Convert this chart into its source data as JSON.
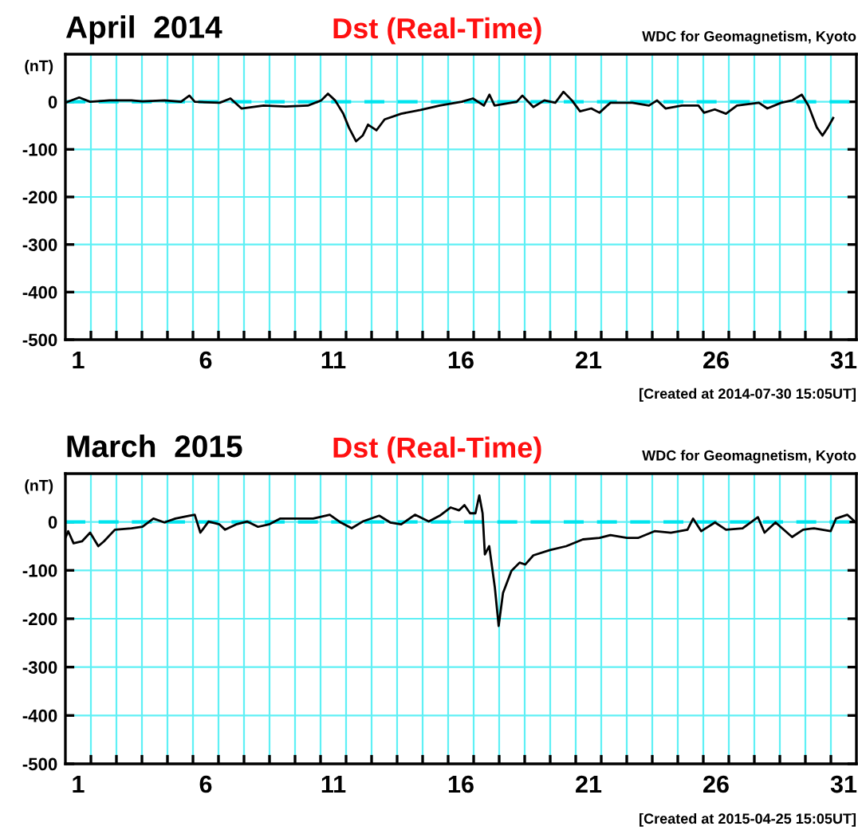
{
  "chart_data": [
    {
      "type": "line",
      "title": "April  2014",
      "subtitle": "Dst (Real-Time)",
      "ylabel": "(nT)",
      "annotations": [
        "WDC for Geomagnetism, Kyoto",
        "[Created at 2014-07-30 15:05UT]"
      ],
      "x": [
        1.0,
        1.54,
        1.97,
        2.73,
        3.59,
        4.02,
        4.89,
        5.53,
        5.86,
        6.07,
        7.05,
        7.47,
        7.9,
        8.77,
        9.63,
        10.5,
        11.03,
        11.29,
        11.57,
        11.89,
        12.11,
        12.39,
        12.65,
        12.86,
        13.19,
        13.51,
        14.16,
        14.92,
        15.67,
        16.53,
        16.97,
        17.4,
        17.62,
        17.82,
        18.69,
        18.91,
        19.34,
        19.77,
        20.2,
        20.52,
        20.85,
        21.17,
        21.61,
        21.93,
        22.36,
        23.22,
        23.87,
        24.19,
        24.52,
        25.16,
        25.81,
        26.03,
        26.45,
        26.89,
        27.32,
        28.18,
        28.51,
        29.05,
        29.48,
        29.86,
        30.12,
        30.45,
        30.67,
        30.88,
        31.09
      ],
      "series": [
        {
          "color": "#000000",
          "values": [
            -2,
            9,
            0,
            3,
            3,
            1,
            3,
            0,
            13,
            0,
            -2,
            7,
            -14,
            -8,
            -10,
            -8,
            3,
            17,
            3,
            -25,
            -54,
            -83,
            -71,
            -48,
            -60,
            -37,
            -25,
            -17,
            -8,
            0,
            7,
            -8,
            15,
            -8,
            0,
            13,
            -11,
            3,
            -2,
            21,
            3,
            -20,
            -14,
            -23,
            -2,
            -2,
            -8,
            3,
            -14,
            -8,
            -8,
            -23,
            -16,
            -25,
            -8,
            -2,
            -14,
            -2,
            3,
            15,
            -8,
            -54,
            -71,
            -54,
            -34
          ]
        }
      ],
      "xlim": [
        1,
        32
      ],
      "xticks": [
        {
          "value": 1.5,
          "label": "1"
        },
        {
          "value": 6.5,
          "label": "6"
        },
        {
          "value": 11.5,
          "label": "11"
        },
        {
          "value": 16.5,
          "label": "16"
        },
        {
          "value": 21.5,
          "label": "21"
        },
        {
          "value": 26.5,
          "label": "26"
        },
        {
          "value": 31.5,
          "label": "31"
        },
        {
          "value": 2,
          "label": null
        },
        {
          "value": 3,
          "label": null
        },
        {
          "value": 4,
          "label": null
        },
        {
          "value": 5,
          "label": null
        },
        {
          "value": 6,
          "label": null
        },
        {
          "value": 7,
          "label": null
        },
        {
          "value": 8,
          "label": null
        },
        {
          "value": 9,
          "label": null
        },
        {
          "value": 10,
          "label": null
        },
        {
          "value": 11,
          "label": null
        },
        {
          "value": 12,
          "label": null
        },
        {
          "value": 13,
          "label": null
        },
        {
          "value": 14,
          "label": null
        },
        {
          "value": 15,
          "label": null
        },
        {
          "value": 16,
          "label": null
        },
        {
          "value": 17,
          "label": null
        },
        {
          "value": 18,
          "label": null
        },
        {
          "value": 19,
          "label": null
        },
        {
          "value": 20,
          "label": null
        },
        {
          "value": 21,
          "label": null
        },
        {
          "value": 22,
          "label": null
        },
        {
          "value": 23,
          "label": null
        },
        {
          "value": 24,
          "label": null
        },
        {
          "value": 25,
          "label": null
        },
        {
          "value": 26,
          "label": null
        },
        {
          "value": 27,
          "label": null
        },
        {
          "value": 28,
          "label": null
        },
        {
          "value": 29,
          "label": null
        },
        {
          "value": 30,
          "label": null
        },
        {
          "value": 31,
          "label": null
        }
      ],
      "ylim": [
        -500,
        100
      ],
      "yticks": [
        0,
        -100,
        -200,
        -300,
        -400,
        -500
      ],
      "grid": true,
      "ref_lines": [
        {
          "axis": "y",
          "value": 0,
          "color": "#00e5ee",
          "line_style": "dashed"
        }
      ]
    },
    {
      "type": "line",
      "title": "March  2015",
      "subtitle": "Dst (Real-Time)",
      "ylabel": "(nT)",
      "annotations": [
        "WDC for Geomagnetism, Kyoto",
        "[Created at 2015-04-25 15:05UT]"
      ],
      "x": [
        1.0,
        1.11,
        1.32,
        1.65,
        1.97,
        2.29,
        2.51,
        2.94,
        3.59,
        4.02,
        4.45,
        4.88,
        5.31,
        5.85,
        6.07,
        6.29,
        6.61,
        7.04,
        7.26,
        7.69,
        8.12,
        8.55,
        8.98,
        9.41,
        10.06,
        10.71,
        11.36,
        11.79,
        12.22,
        12.65,
        13.3,
        13.73,
        14.16,
        14.7,
        15.24,
        15.67,
        16.1,
        16.43,
        16.64,
        16.86,
        17.07,
        17.22,
        17.35,
        17.44,
        17.61,
        17.83,
        17.98,
        18.15,
        18.48,
        18.8,
        19.02,
        19.34,
        19.99,
        20.63,
        21.28,
        21.93,
        22.36,
        23.01,
        23.44,
        24.09,
        24.73,
        25.38,
        25.6,
        25.92,
        26.46,
        26.89,
        27.54,
        28.14,
        28.4,
        28.83,
        29.48,
        29.91,
        30.34,
        30.99,
        31.2,
        31.64,
        31.98
      ],
      "series": [
        {
          "color": "#000000",
          "values": [
            -33,
            -19,
            -44,
            -40,
            -22,
            -50,
            -40,
            -16,
            -13,
            -10,
            7,
            -1,
            7,
            13,
            15,
            -22,
            1,
            -5,
            -16,
            -5,
            1,
            -10,
            -5,
            7,
            7,
            7,
            15,
            -1,
            -13,
            1,
            13,
            -1,
            -5,
            15,
            1,
            13,
            30,
            24,
            35,
            18,
            18,
            55,
            18,
            -67,
            -50,
            -135,
            -215,
            -147,
            -101,
            -84,
            -88,
            -69,
            -58,
            -50,
            -36,
            -33,
            -27,
            -33,
            -33,
            -19,
            -22,
            -16,
            7,
            -19,
            -1,
            -16,
            -13,
            10,
            -22,
            -1,
            -31,
            -16,
            -13,
            -19,
            7,
            15,
            -1
          ]
        }
      ],
      "xlim": [
        1,
        32
      ],
      "xticks": [
        {
          "value": 1.5,
          "label": "1"
        },
        {
          "value": 6.5,
          "label": "6"
        },
        {
          "value": 11.5,
          "label": "11"
        },
        {
          "value": 16.5,
          "label": "16"
        },
        {
          "value": 21.5,
          "label": "21"
        },
        {
          "value": 26.5,
          "label": "26"
        },
        {
          "value": 31.5,
          "label": "31"
        },
        {
          "value": 2,
          "label": null
        },
        {
          "value": 3,
          "label": null
        },
        {
          "value": 4,
          "label": null
        },
        {
          "value": 5,
          "label": null
        },
        {
          "value": 6,
          "label": null
        },
        {
          "value": 7,
          "label": null
        },
        {
          "value": 8,
          "label": null
        },
        {
          "value": 9,
          "label": null
        },
        {
          "value": 10,
          "label": null
        },
        {
          "value": 11,
          "label": null
        },
        {
          "value": 12,
          "label": null
        },
        {
          "value": 13,
          "label": null
        },
        {
          "value": 14,
          "label": null
        },
        {
          "value": 15,
          "label": null
        },
        {
          "value": 16,
          "label": null
        },
        {
          "value": 17,
          "label": null
        },
        {
          "value": 18,
          "label": null
        },
        {
          "value": 19,
          "label": null
        },
        {
          "value": 20,
          "label": null
        },
        {
          "value": 21,
          "label": null
        },
        {
          "value": 22,
          "label": null
        },
        {
          "value": 23,
          "label": null
        },
        {
          "value": 24,
          "label": null
        },
        {
          "value": 25,
          "label": null
        },
        {
          "value": 26,
          "label": null
        },
        {
          "value": 27,
          "label": null
        },
        {
          "value": 28,
          "label": null
        },
        {
          "value": 29,
          "label": null
        },
        {
          "value": 30,
          "label": null
        },
        {
          "value": 31,
          "label": null
        }
      ],
      "ylim": [
        -500,
        100
      ],
      "yticks": [
        0,
        -100,
        -200,
        -300,
        -400,
        -500
      ],
      "grid": true,
      "ref_lines": [
        {
          "axis": "y",
          "value": 0,
          "color": "#00e5ee",
          "line_style": "dashed"
        }
      ]
    }
  ]
}
